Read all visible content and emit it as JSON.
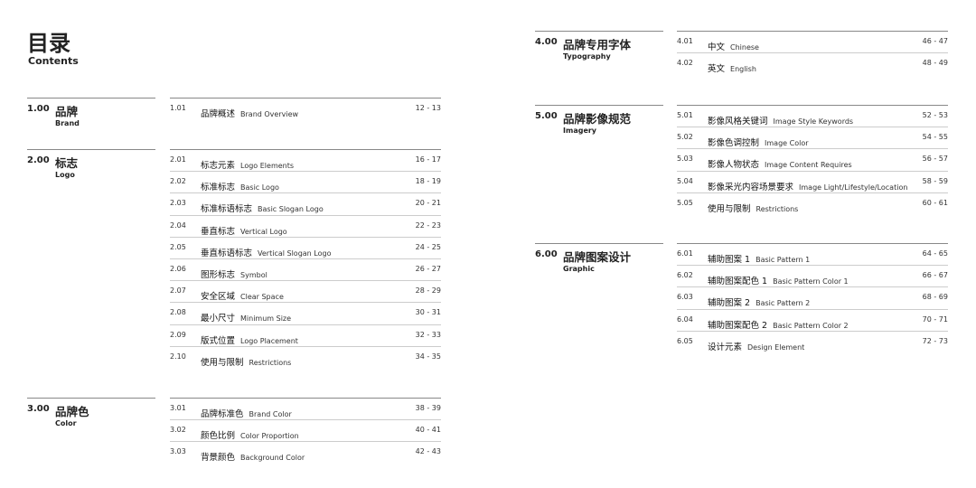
{
  "header": {
    "title": "目录",
    "subtitle": "Contents"
  },
  "sections": [
    {
      "number": "1.00",
      "name": "品牌",
      "name_en": "Brand",
      "items": [
        {
          "number": "1.01",
          "cn": "品牌概述",
          "en": "Brand Overview",
          "pages": "12 - 13"
        }
      ]
    },
    {
      "number": "2.00",
      "name": "标志",
      "name_en": "Logo",
      "items": [
        {
          "number": "2.01",
          "cn": "标志元素",
          "en": "Logo Elements",
          "pages": "16 - 17"
        },
        {
          "number": "2.02",
          "cn": "标准标志",
          "en": "Basic Logo",
          "pages": "18 - 19"
        },
        {
          "number": "2.03",
          "cn": "标准标语标志",
          "en": "Basic Slogan Logo",
          "pages": "20 - 21"
        },
        {
          "number": "2.04",
          "cn": "垂直标志",
          "en": "Vertical Logo",
          "pages": "22 - 23"
        },
        {
          "number": "2.05",
          "cn": "垂直标语标志",
          "en": "Vertical Slogan Logo",
          "pages": "24 - 25"
        },
        {
          "number": "2.06",
          "cn": "图形标志",
          "en": "Symbol",
          "pages": "26 - 27"
        },
        {
          "number": "2.07",
          "cn": "安全区域",
          "en": "Clear Space",
          "pages": "28 - 29"
        },
        {
          "number": "2.08",
          "cn": "最小尺寸",
          "en": "Minimum Size",
          "pages": "30 - 31"
        },
        {
          "number": "2.09",
          "cn": "版式位置",
          "en": "Logo Placement",
          "pages": "32 - 33"
        },
        {
          "number": "2.10",
          "cn": "使用与限制",
          "en": "Restrictions",
          "pages": "34 - 35"
        }
      ]
    },
    {
      "number": "3.00",
      "name": "品牌色",
      "name_en": "Color",
      "items": [
        {
          "number": "3.01",
          "cn": "品牌标准色",
          "en": "Brand Color",
          "pages": "38 - 39"
        },
        {
          "number": "3.02",
          "cn": "颜色比例",
          "en": "Color Proportion",
          "pages": "40 - 41"
        },
        {
          "number": "3.03",
          "cn": "背景颜色",
          "en": "Background Color",
          "pages": "42 - 43"
        }
      ]
    },
    {
      "number": "4.00",
      "name": "品牌专用字体",
      "name_en": "Typography",
      "items": [
        {
          "number": "4.01",
          "cn": "中文",
          "en": "Chinese",
          "pages": "46 - 47"
        },
        {
          "number": "4.02",
          "cn": "英文",
          "en": "English",
          "pages": "48 - 49"
        }
      ]
    },
    {
      "number": "5.00",
      "name": "品牌影像规范",
      "name_en": "Imagery",
      "items": [
        {
          "number": "5.01",
          "cn": "影像风格关键词",
          "en": "Image Style Keywords",
          "pages": "52 - 53"
        },
        {
          "number": "5.02",
          "cn": "影像色调控制",
          "en": "Image Color",
          "pages": "54 - 55"
        },
        {
          "number": "5.03",
          "cn": "影像人物状态",
          "en": "Image Content Requires",
          "pages": "56 - 57"
        },
        {
          "number": "5.04",
          "cn": "影像采光内容场景要求",
          "en": "Image Light/Lifestyle/Location",
          "pages": "58 - 59"
        },
        {
          "number": "5.05",
          "cn": "使用与限制",
          "en": "Restrictions",
          "pages": "60 - 61"
        }
      ]
    },
    {
      "number": "6.00",
      "name": "品牌图案设计",
      "name_en": "Graphic",
      "items": [
        {
          "number": "6.01",
          "cn": "辅助图案 1",
          "en": "Basic Pattern 1",
          "pages": "64 - 65"
        },
        {
          "number": "6.02",
          "cn": "辅助图案配色 1",
          "en": "Basic Pattern Color 1",
          "pages": "66 - 67"
        },
        {
          "number": "6.03",
          "cn": "辅助图案 2",
          "en": "Basic Pattern 2",
          "pages": "68 - 69"
        },
        {
          "number": "6.04",
          "cn": "辅助图案配色 2",
          "en": "Basic Pattern Color 2",
          "pages": "70 - 71"
        },
        {
          "number": "6.05",
          "cn": "设计元素",
          "en": "Design Element",
          "pages": "72 - 73"
        }
      ]
    }
  ]
}
